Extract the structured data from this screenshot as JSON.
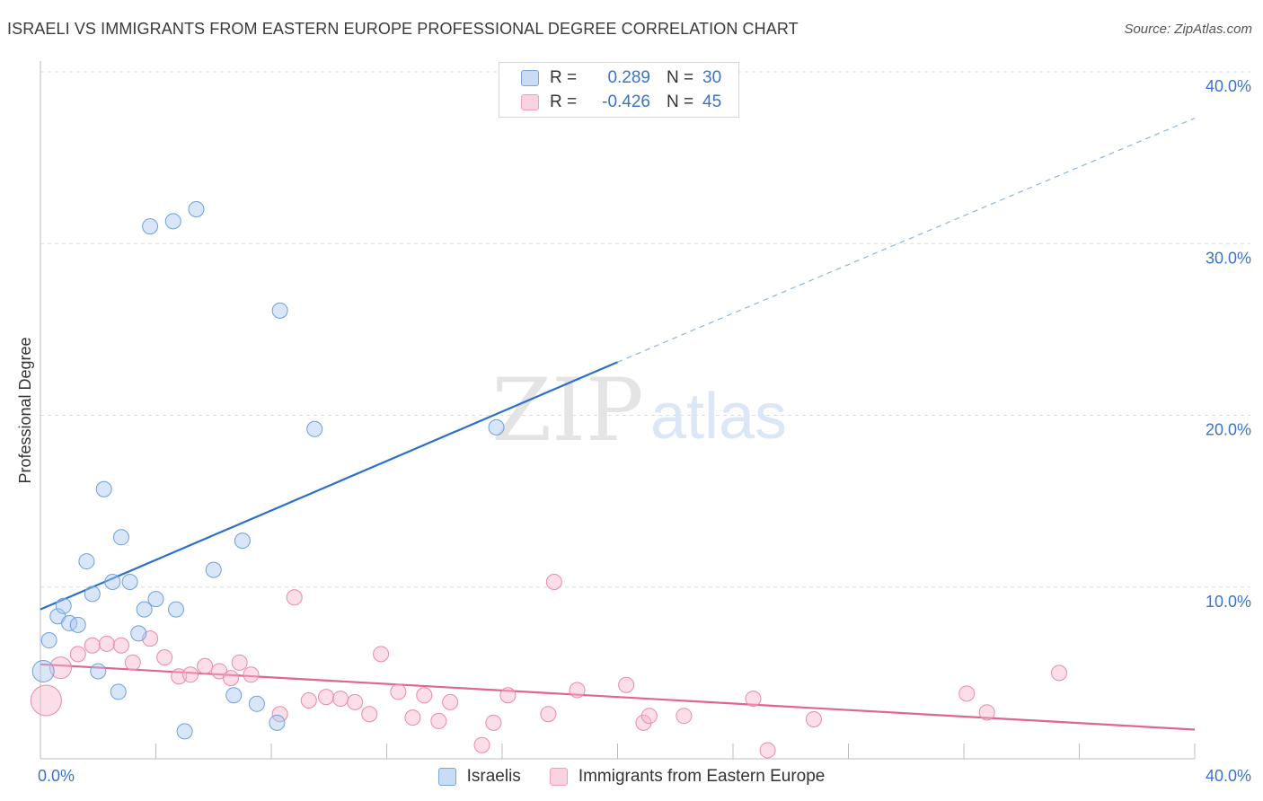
{
  "title": "ISRAELI VS IMMIGRANTS FROM EASTERN EUROPE PROFESSIONAL DEGREE CORRELATION CHART",
  "source": "Source: ZipAtlas.com",
  "watermark": {
    "zip": "ZIP",
    "atlas": "atlas"
  },
  "legend": {
    "rows": [
      {
        "r_label": "R =",
        "r_value": "0.289",
        "n_label": "N =",
        "n_value": "30",
        "color": "#a9c8f0"
      },
      {
        "r_label": "R =",
        "r_value": "-0.426",
        "n_label": "N =",
        "n_value": "45",
        "color": "#f7b6ca"
      }
    ]
  },
  "bottom_legend": [
    {
      "label": "Israelis",
      "color": "#a9c8f0"
    },
    {
      "label": "Immigrants from Eastern Europe",
      "color": "#f7b6ca"
    }
  ],
  "colors": {
    "blue_fill": "#a9c8f0",
    "blue_stroke": "#6f9fdc",
    "blue_line": "#2a6fcf",
    "pink_fill": "#f7b6ca",
    "pink_stroke": "#e98aa8",
    "pink_line": "#e06590",
    "tick_text": "#3b73c8",
    "grid": "#dddddd"
  },
  "chart_data": {
    "type": "scatter",
    "title": "ISRAELI VS IMMIGRANTS FROM EASTERN EUROPE PROFESSIONAL DEGREE CORRELATION CHART",
    "xlabel": "",
    "ylabel": "Professional Degree",
    "xlim": [
      0,
      40
    ],
    "ylim": [
      0,
      40
    ],
    "x_tick_labels": [
      "0.0%",
      "40.0%"
    ],
    "y_ticks": [
      10,
      20,
      30,
      40
    ],
    "y_tick_labels": [
      "10.0%",
      "20.0%",
      "30.0%",
      "40.0%"
    ],
    "grid": true,
    "series": [
      {
        "name": "Israelis",
        "r": 0.289,
        "n": 30,
        "points": [
          [
            0.1,
            5.1,
            2
          ],
          [
            0.3,
            6.9,
            1
          ],
          [
            0.6,
            8.3,
            1
          ],
          [
            0.8,
            8.9,
            1
          ],
          [
            1.0,
            7.9,
            1
          ],
          [
            1.3,
            7.8,
            1
          ],
          [
            1.6,
            11.5,
            1
          ],
          [
            1.8,
            9.6,
            1
          ],
          [
            2.0,
            5.1,
            1
          ],
          [
            2.2,
            15.7,
            1
          ],
          [
            2.5,
            10.3,
            1
          ],
          [
            2.7,
            3.9,
            1
          ],
          [
            2.8,
            12.9,
            1
          ],
          [
            3.1,
            10.3,
            1
          ],
          [
            3.4,
            7.3,
            1
          ],
          [
            3.6,
            8.7,
            1
          ],
          [
            3.8,
            31.0,
            1
          ],
          [
            4.0,
            9.3,
            1
          ],
          [
            4.6,
            31.3,
            1
          ],
          [
            4.7,
            8.7,
            1
          ],
          [
            5.0,
            1.6,
            1
          ],
          [
            5.4,
            32.0,
            1
          ],
          [
            6.0,
            11.0,
            1
          ],
          [
            6.7,
            3.7,
            1
          ],
          [
            7.0,
            12.7,
            1
          ],
          [
            7.5,
            3.2,
            1
          ],
          [
            8.2,
            2.1,
            1
          ],
          [
            8.3,
            26.1,
            1
          ],
          [
            9.5,
            19.2,
            1
          ],
          [
            15.8,
            19.3,
            1
          ]
        ],
        "trend": {
          "x": [
            0,
            20
          ],
          "y": [
            8.7,
            23.1
          ],
          "dashed_extension_to": [
            40,
            37.3
          ]
        }
      },
      {
        "name": "Immigrants from Eastern Europe",
        "r": -0.426,
        "n": 45,
        "points": [
          [
            0.2,
            3.4,
            3
          ],
          [
            0.7,
            5.3,
            2
          ],
          [
            1.3,
            6.1,
            1
          ],
          [
            1.8,
            6.6,
            1
          ],
          [
            2.3,
            6.7,
            1
          ],
          [
            2.8,
            6.6,
            1
          ],
          [
            3.2,
            5.6,
            1
          ],
          [
            3.8,
            7.0,
            1
          ],
          [
            4.3,
            5.9,
            1
          ],
          [
            4.8,
            4.8,
            1
          ],
          [
            5.2,
            4.9,
            1
          ],
          [
            5.7,
            5.4,
            1
          ],
          [
            6.2,
            5.1,
            1
          ],
          [
            6.6,
            4.7,
            1
          ],
          [
            6.9,
            5.6,
            1
          ],
          [
            7.3,
            4.9,
            1
          ],
          [
            8.3,
            2.6,
            1
          ],
          [
            8.8,
            9.4,
            1
          ],
          [
            9.3,
            3.4,
            1
          ],
          [
            9.9,
            3.6,
            1
          ],
          [
            10.4,
            3.5,
            1
          ],
          [
            10.9,
            3.3,
            1
          ],
          [
            11.4,
            2.6,
            1
          ],
          [
            11.8,
            6.1,
            1
          ],
          [
            12.4,
            3.9,
            1
          ],
          [
            12.9,
            2.4,
            1
          ],
          [
            13.3,
            3.7,
            1
          ],
          [
            13.8,
            2.2,
            1
          ],
          [
            14.2,
            3.3,
            1
          ],
          [
            15.3,
            0.8,
            1
          ],
          [
            15.7,
            2.1,
            1
          ],
          [
            16.2,
            3.7,
            1
          ],
          [
            17.6,
            2.6,
            1
          ],
          [
            17.8,
            10.3,
            1
          ],
          [
            18.6,
            4.0,
            1
          ],
          [
            20.3,
            4.3,
            1
          ],
          [
            20.9,
            2.1,
            1
          ],
          [
            21.1,
            2.5,
            1
          ],
          [
            22.3,
            2.5,
            1
          ],
          [
            24.7,
            3.5,
            1
          ],
          [
            25.2,
            0.5,
            1
          ],
          [
            26.8,
            2.3,
            1
          ],
          [
            32.1,
            3.8,
            1
          ],
          [
            32.8,
            2.7,
            1
          ],
          [
            35.3,
            5.0,
            1
          ]
        ],
        "trend": {
          "x": [
            0,
            40
          ],
          "y": [
            5.5,
            1.7
          ]
        }
      }
    ]
  }
}
